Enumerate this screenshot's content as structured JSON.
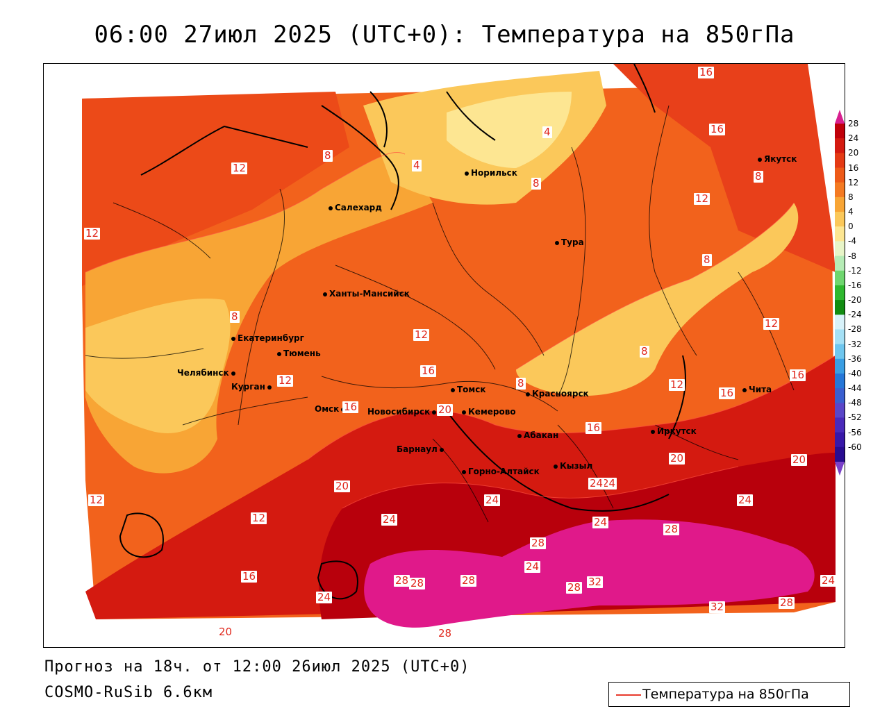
{
  "header": {
    "title": "06:00 27июл 2025 (UTC+0): Температура на 850гПа"
  },
  "footer": {
    "forecast": "Прогноз на 18ч. от 12:00 26июл 2025 (UTC+0)",
    "model": "COSMO-RuSib 6.6км",
    "legend_label": "Температура на 850гПа",
    "legend_color": "#e83a2c"
  },
  "cities": [
    {
      "name": "Норильск"
    },
    {
      "name": "Якутск"
    },
    {
      "name": "Салехард"
    },
    {
      "name": "Тура"
    },
    {
      "name": "Ханты-Мансийск"
    },
    {
      "name": "Екатеринбург"
    },
    {
      "name": "Тюмень"
    },
    {
      "name": "Челябинск"
    },
    {
      "name": "Курган"
    },
    {
      "name": "Омск"
    },
    {
      "name": "Томск"
    },
    {
      "name": "Новосибирск"
    },
    {
      "name": "Кемерово"
    },
    {
      "name": "Красноярск"
    },
    {
      "name": "Абакан"
    },
    {
      "name": "Барнаул"
    },
    {
      "name": "Горно-Алтайск"
    },
    {
      "name": "Кызыл"
    },
    {
      "name": "Иркутск"
    },
    {
      "name": "Чита"
    }
  ],
  "isotherm_labels": [
    "16",
    "16",
    "4",
    "8",
    "12",
    "4",
    "8",
    "12",
    "8",
    "12",
    "8",
    "12",
    "12",
    "12",
    "16",
    "8",
    "8",
    "12",
    "16",
    "16",
    "8",
    "20",
    "16",
    "16",
    "20",
    "20",
    "12",
    "20",
    "24",
    "24",
    "24",
    "24",
    "24",
    "28",
    "28",
    "24",
    "28",
    "32",
    "28",
    "32",
    "24",
    "28",
    "28",
    "28",
    "24",
    "28",
    "16",
    "20",
    "24",
    "12"
  ],
  "colorbar": {
    "ticks": [
      "28",
      "24",
      "20",
      "16",
      "12",
      "8",
      "4",
      "0",
      "-4",
      "-8",
      "-12",
      "-16",
      "-20",
      "-24",
      "-28",
      "-32",
      "-36",
      "-40",
      "-44",
      "-48",
      "-52",
      "-56",
      "-60"
    ],
    "colors": [
      "#c0000a",
      "#d41a10",
      "#e43a14",
      "#ee5a18",
      "#f47a22",
      "#f8a535",
      "#fbc85a",
      "#fde692",
      "#e8f5c8",
      "#b6ecb6",
      "#6fd66f",
      "#2fb82f",
      "#128c12",
      "#d8f2fa",
      "#a5e0f5",
      "#6fc6ee",
      "#3a9ee3",
      "#2677d8",
      "#3a5fd0",
      "#5a46c8",
      "#4a2aba",
      "#3818a8",
      "#280c90"
    ],
    "top_color": "#d81f8f",
    "bottom_color": "#7a40c8"
  }
}
